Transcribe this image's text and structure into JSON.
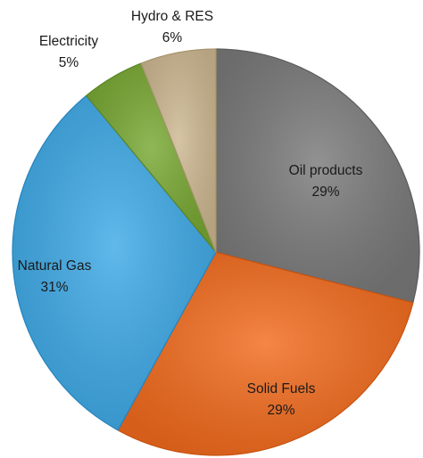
{
  "chart_data": {
    "type": "pie",
    "title": "",
    "start_angle_deg": 0,
    "direction": "clockwise",
    "slices": [
      {
        "name": "Oil products",
        "value": 29,
        "value_label": "29%",
        "color": "#7a7a7a",
        "edge": "#5c5c5c"
      },
      {
        "name": "Solid Fuels",
        "value": 29,
        "value_label": "29%",
        "color": "#f26b1d",
        "edge": "#c8520f"
      },
      {
        "name": "Natural Gas",
        "value": 31,
        "value_label": "31%",
        "color": "#3ea9e6",
        "edge": "#2583bd"
      },
      {
        "name": "Electricity",
        "value": 5,
        "value_label": "5%",
        "color": "#78a832",
        "edge": "#5a8424"
      },
      {
        "name": "Hydro & RES",
        "value": 6,
        "value_label": "6%",
        "color": "#cdb891",
        "edge": "#a8946c"
      }
    ],
    "legend": "none",
    "data_labels": "name-and-percent"
  }
}
